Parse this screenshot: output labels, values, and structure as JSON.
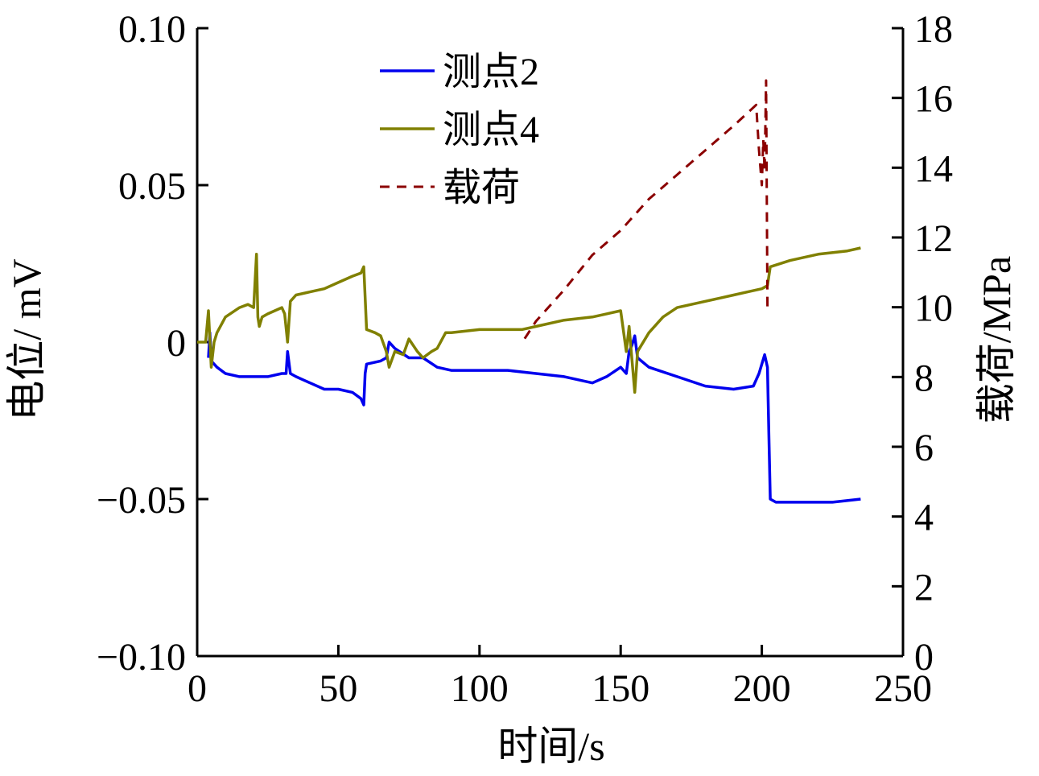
{
  "chart_data": {
    "type": "line",
    "xlabel": "时间/s",
    "ylabel_left": "电位/ mV",
    "ylabel_right": "载荷/MPa",
    "xlim": [
      0,
      250
    ],
    "ylim_left": [
      -0.1,
      0.1
    ],
    "ylim_right": [
      0,
      18
    ],
    "x_ticks": [
      "0",
      "50",
      "100",
      "150",
      "200",
      "250"
    ],
    "y_left_ticks": [
      "0.10",
      "0.05",
      "0",
      "−0.05",
      "−0.10"
    ],
    "y_right_ticks": [
      "18",
      "16",
      "14",
      "12",
      "10",
      "8",
      "6",
      "4",
      "2",
      "0"
    ],
    "grid": false,
    "legend_position": "top-center",
    "series": [
      {
        "name": "测点2",
        "color": "#0000ee",
        "axis": "left",
        "style": "solid",
        "points": [
          [
            4,
            -0.005
          ],
          [
            4.5,
            0.003
          ],
          [
            5,
            -0.006
          ],
          [
            7,
            -0.008
          ],
          [
            10,
            -0.01
          ],
          [
            15,
            -0.011
          ],
          [
            20,
            -0.011
          ],
          [
            25,
            -0.011
          ],
          [
            30,
            -0.01
          ],
          [
            31.5,
            -0.01
          ],
          [
            32,
            -0.003
          ],
          [
            33,
            -0.01
          ],
          [
            35,
            -0.011
          ],
          [
            40,
            -0.013
          ],
          [
            45,
            -0.015
          ],
          [
            50,
            -0.015
          ],
          [
            55,
            -0.016
          ],
          [
            58,
            -0.018
          ],
          [
            59,
            -0.02
          ],
          [
            59.5,
            -0.01
          ],
          [
            60,
            -0.007
          ],
          [
            65,
            -0.006
          ],
          [
            67,
            -0.005
          ],
          [
            68,
            0.0
          ],
          [
            70,
            -0.002
          ],
          [
            75,
            -0.005
          ],
          [
            80,
            -0.005
          ],
          [
            85,
            -0.008
          ],
          [
            90,
            -0.009
          ],
          [
            100,
            -0.009
          ],
          [
            110,
            -0.009
          ],
          [
            120,
            -0.01
          ],
          [
            130,
            -0.011
          ],
          [
            140,
            -0.013
          ],
          [
            145,
            -0.011
          ],
          [
            150,
            -0.008
          ],
          [
            152,
            -0.01
          ],
          [
            153,
            -0.003
          ],
          [
            154,
            -0.001
          ],
          [
            155,
            0.002
          ],
          [
            156,
            -0.005
          ],
          [
            160,
            -0.008
          ],
          [
            170,
            -0.011
          ],
          [
            180,
            -0.014
          ],
          [
            190,
            -0.015
          ],
          [
            197,
            -0.014
          ],
          [
            199,
            -0.01
          ],
          [
            201,
            -0.004
          ],
          [
            202,
            -0.008
          ],
          [
            202.5,
            -0.03
          ],
          [
            203,
            -0.05
          ],
          [
            205,
            -0.051
          ],
          [
            215,
            -0.051
          ],
          [
            225,
            -0.051
          ],
          [
            235,
            -0.05
          ]
        ]
      },
      {
        "name": "测点4",
        "color": "#808000",
        "axis": "left",
        "style": "solid",
        "points": [
          [
            0,
            0.0
          ],
          [
            3,
            0.0
          ],
          [
            4,
            0.01
          ],
          [
            5,
            -0.008
          ],
          [
            6,
            0.0
          ],
          [
            7,
            0.003
          ],
          [
            10,
            0.008
          ],
          [
            15,
            0.011
          ],
          [
            18,
            0.012
          ],
          [
            20,
            0.011
          ],
          [
            21,
            0.028
          ],
          [
            21.5,
            0.008
          ],
          [
            22,
            0.005
          ],
          [
            23,
            0.008
          ],
          [
            25,
            0.009
          ],
          [
            30,
            0.011
          ],
          [
            31,
            0.009
          ],
          [
            32,
            0.0
          ],
          [
            33,
            0.013
          ],
          [
            35,
            0.015
          ],
          [
            40,
            0.016
          ],
          [
            45,
            0.017
          ],
          [
            50,
            0.019
          ],
          [
            55,
            0.021
          ],
          [
            58,
            0.022
          ],
          [
            59,
            0.024
          ],
          [
            60,
            0.004
          ],
          [
            63,
            0.003
          ],
          [
            65,
            0.002
          ],
          [
            67,
            -0.003
          ],
          [
            68,
            -0.008
          ],
          [
            70,
            -0.003
          ],
          [
            73,
            -0.004
          ],
          [
            75,
            0.001
          ],
          [
            78,
            -0.003
          ],
          [
            80,
            -0.005
          ],
          [
            83,
            -0.003
          ],
          [
            85,
            -0.002
          ],
          [
            88,
            0.003
          ],
          [
            90,
            0.003
          ],
          [
            100,
            0.004
          ],
          [
            110,
            0.004
          ],
          [
            115,
            0.004
          ],
          [
            120,
            0.005
          ],
          [
            130,
            0.007
          ],
          [
            140,
            0.008
          ],
          [
            145,
            0.009
          ],
          [
            150,
            0.01
          ],
          [
            152,
            -0.003
          ],
          [
            153,
            0.005
          ],
          [
            155,
            -0.016
          ],
          [
            156,
            -0.003
          ],
          [
            160,
            0.003
          ],
          [
            165,
            0.008
          ],
          [
            170,
            0.011
          ],
          [
            175,
            0.012
          ],
          [
            180,
            0.013
          ],
          [
            185,
            0.014
          ],
          [
            190,
            0.015
          ],
          [
            195,
            0.016
          ],
          [
            200,
            0.017
          ],
          [
            202,
            0.018
          ],
          [
            203,
            0.024
          ],
          [
            210,
            0.026
          ],
          [
            220,
            0.028
          ],
          [
            230,
            0.029
          ],
          [
            235,
            0.03
          ]
        ]
      },
      {
        "name": "载荷",
        "color": "#8b0000",
        "axis": "right",
        "style": "dashed",
        "points": [
          [
            116,
            9.1
          ],
          [
            120,
            9.6
          ],
          [
            130,
            10.5
          ],
          [
            140,
            11.5
          ],
          [
            150,
            12.2
          ],
          [
            160,
            13.1
          ],
          [
            170,
            13.8
          ],
          [
            180,
            14.5
          ],
          [
            190,
            15.2
          ],
          [
            198,
            15.8
          ],
          [
            199,
            14.5
          ],
          [
            200,
            13.5
          ],
          [
            200.5,
            14.8
          ],
          [
            201,
            13.9
          ],
          [
            201.5,
            16.5
          ],
          [
            202,
            10.0
          ]
        ]
      }
    ]
  }
}
